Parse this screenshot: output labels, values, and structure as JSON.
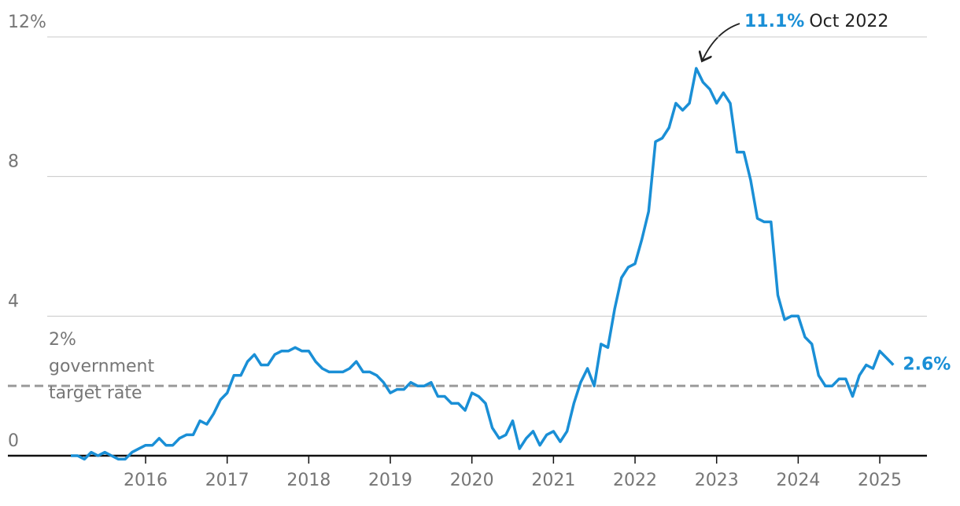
{
  "chart_data": {
    "type": "line",
    "categories": [
      null,
      null,
      null,
      null,
      null,
      null,
      null,
      null,
      null,
      null,
      null,
      "2016",
      null,
      null,
      null,
      null,
      null,
      null,
      null,
      null,
      null,
      null,
      null,
      "2017",
      null,
      null,
      null,
      null,
      null,
      null,
      null,
      null,
      null,
      null,
      null,
      "2018",
      null,
      null,
      null,
      null,
      null,
      null,
      null,
      null,
      null,
      null,
      null,
      "2019",
      null,
      null,
      null,
      null,
      null,
      null,
      null,
      null,
      null,
      null,
      null,
      "2020",
      null,
      null,
      null,
      null,
      null,
      null,
      null,
      null,
      null,
      null,
      null,
      "2021",
      null,
      null,
      null,
      null,
      null,
      null,
      null,
      null,
      null,
      null,
      null,
      "2022",
      null,
      null,
      null,
      null,
      null,
      null,
      null,
      null,
      null,
      null,
      null,
      "2023",
      null,
      null,
      null,
      null,
      null,
      null,
      null,
      null,
      null,
      null,
      null,
      "2024",
      null,
      null,
      null,
      null,
      null,
      null,
      null,
      null,
      null,
      null,
      null,
      "2025",
      null,
      null
    ],
    "values": [
      0.0,
      0.0,
      -0.1,
      0.1,
      0.0,
      0.1,
      0.0,
      -0.1,
      -0.1,
      0.1,
      0.2,
      0.3,
      0.3,
      0.5,
      0.3,
      0.3,
      0.5,
      0.6,
      0.6,
      1.0,
      0.9,
      1.2,
      1.6,
      1.8,
      2.3,
      2.3,
      2.7,
      2.9,
      2.6,
      2.6,
      2.9,
      3.0,
      3.0,
      3.1,
      3.0,
      3.0,
      2.7,
      2.5,
      2.4,
      2.4,
      2.4,
      2.5,
      2.7,
      2.4,
      2.4,
      2.3,
      2.1,
      1.8,
      1.9,
      1.9,
      2.1,
      2.0,
      2.0,
      2.1,
      1.7,
      1.7,
      1.5,
      1.5,
      1.3,
      1.8,
      1.7,
      1.5,
      0.8,
      0.5,
      0.6,
      1.0,
      0.2,
      0.5,
      0.7,
      0.3,
      0.6,
      0.7,
      0.4,
      0.7,
      1.5,
      2.1,
      2.5,
      2.0,
      3.2,
      3.1,
      4.2,
      5.1,
      5.4,
      5.5,
      6.2,
      7.0,
      9.0,
      9.1,
      9.4,
      10.1,
      9.9,
      10.1,
      11.1,
      10.7,
      10.5,
      10.1,
      10.4,
      10.1,
      8.7,
      8.7,
      7.9,
      6.8,
      6.7,
      6.7,
      4.6,
      3.9,
      4.0,
      4.0,
      3.4,
      3.2,
      2.3,
      2.0,
      2.0,
      2.2,
      2.2,
      1.7,
      2.3,
      2.6,
      2.5,
      3.0,
      2.8,
      2.6
    ],
    "color": "#1a8fd6",
    "ylim": [
      0,
      12
    ],
    "yticks": [
      0,
      4,
      8,
      {
        "value": 12,
        "label": "12%"
      }
    ],
    "grid": true,
    "target": {
      "value": 2,
      "label_lines": [
        "2%",
        "government",
        "target rate"
      ]
    },
    "annotations": {
      "peak": {
        "value_label": "11.1%",
        "date": "Oct 2022"
      },
      "latest": "2.6%"
    }
  }
}
